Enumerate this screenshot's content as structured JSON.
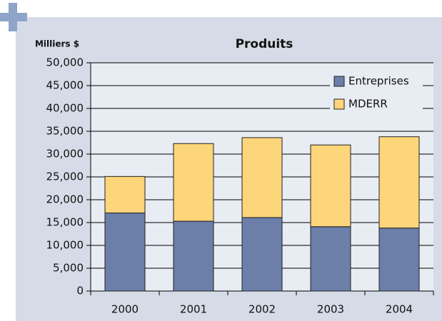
{
  "chart_data": {
    "type": "stacked_bar",
    "title": "Produits",
    "y_label": "Milliers $",
    "categories": [
      "2000",
      "2001",
      "2002",
      "2003",
      "2004"
    ],
    "series": [
      {
        "name": "Entreprises",
        "color": "#6b7fa9",
        "values": [
          17100,
          15300,
          16100,
          14100,
          13800
        ]
      },
      {
        "name": "MDERR",
        "color": "#fdd57a",
        "values": [
          8000,
          17000,
          17500,
          17900,
          20000
        ]
      }
    ],
    "ylim": [
      0,
      50000
    ],
    "yticks": [
      0,
      {
        "value": 5000,
        "label": "5,000"
      },
      {
        "value": 10000,
        "label": "10,000"
      },
      {
        "value": 15000,
        "label": "15,000"
      },
      {
        "value": 20000,
        "label": "20,000"
      },
      {
        "value": 25000,
        "label": "25,000"
      },
      {
        "value": 30000,
        "label": "30,000"
      },
      {
        "value": 35000,
        "label": "35,000"
      },
      {
        "value": 40000,
        "label": "40,000"
      },
      {
        "value": 45000,
        "label": "45,000"
      },
      {
        "value": 50000,
        "label": "50,000"
      }
    ],
    "grid": true,
    "legend": "top-right"
  }
}
